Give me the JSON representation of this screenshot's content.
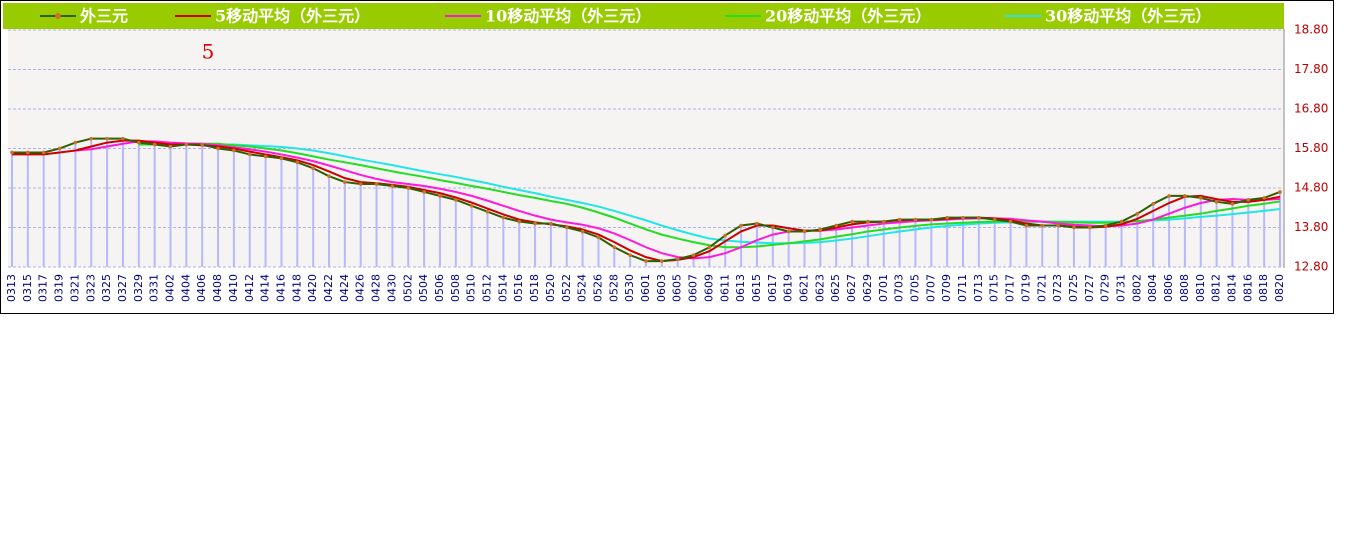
{
  "chart_data": {
    "type": "line",
    "annotation": "5",
    "categories": [
      "0313",
      "0315",
      "0317",
      "0319",
      "0321",
      "0323",
      "0325",
      "0327",
      "0329",
      "0331",
      "0402",
      "0404",
      "0406",
      "0408",
      "0410",
      "0412",
      "0414",
      "0416",
      "0418",
      "0420",
      "0422",
      "0424",
      "0426",
      "0428",
      "0430",
      "0502",
      "0504",
      "0506",
      "0508",
      "0510",
      "0512",
      "0514",
      "0516",
      "0518",
      "0520",
      "0522",
      "0524",
      "0526",
      "0528",
      "0530",
      "0601",
      "0603",
      "0605",
      "0607",
      "0609",
      "0611",
      "0613",
      "0615",
      "0617",
      "0619",
      "0621",
      "0623",
      "0625",
      "0627",
      "0629",
      "0701",
      "0703",
      "0705",
      "0707",
      "0709",
      "0711",
      "0713",
      "0715",
      "0717",
      "0719",
      "0721",
      "0723",
      "0725",
      "0727",
      "0729",
      "0731",
      "0802",
      "0804",
      "0806",
      "0808",
      "0810",
      "0812",
      "0814",
      "0816",
      "0818",
      "0820"
    ],
    "series": [
      {
        "name": "外三元",
        "color": "#2f5f00",
        "marker_color": "#d07020",
        "bar_color": "#b8b8ff",
        "values": [
          15.7,
          15.7,
          15.7,
          15.8,
          15.95,
          16.05,
          16.05,
          16.05,
          15.95,
          15.9,
          15.85,
          15.9,
          15.9,
          15.8,
          15.75,
          15.65,
          15.6,
          15.55,
          15.45,
          15.3,
          15.1,
          14.95,
          14.9,
          14.9,
          14.85,
          14.8,
          14.7,
          14.6,
          14.5,
          14.35,
          14.2,
          14.05,
          13.95,
          13.9,
          13.9,
          13.8,
          13.7,
          13.55,
          13.3,
          13.1,
          12.95,
          12.95,
          13.0,
          13.1,
          13.3,
          13.6,
          13.85,
          13.9,
          13.8,
          13.7,
          13.7,
          13.75,
          13.85,
          13.95,
          13.95,
          13.95,
          14.0,
          14.0,
          14.0,
          14.05,
          14.05,
          14.05,
          14.0,
          13.95,
          13.85,
          13.85,
          13.85,
          13.8,
          13.8,
          13.85,
          13.95,
          14.15,
          14.4,
          14.6,
          14.6,
          14.55,
          14.45,
          14.4,
          14.5,
          14.55,
          14.7
        ]
      },
      {
        "name": "5移动平均（外三元）",
        "color": "#cc0000",
        "values": [
          15.65,
          15.65,
          15.65,
          15.7,
          15.75,
          15.85,
          15.95,
          16.0,
          16.0,
          15.95,
          15.9,
          15.9,
          15.88,
          15.85,
          15.8,
          15.72,
          15.65,
          15.58,
          15.5,
          15.38,
          15.22,
          15.05,
          14.95,
          14.92,
          14.88,
          14.83,
          14.75,
          14.67,
          14.56,
          14.43,
          14.28,
          14.13,
          14.0,
          13.93,
          13.88,
          13.83,
          13.75,
          13.62,
          13.43,
          13.22,
          13.05,
          12.95,
          12.98,
          13.05,
          13.2,
          13.45,
          13.7,
          13.85,
          13.85,
          13.78,
          13.72,
          13.72,
          13.8,
          13.88,
          13.93,
          13.95,
          13.98,
          14.0,
          14.0,
          14.02,
          14.05,
          14.05,
          14.03,
          13.98,
          13.9,
          13.85,
          13.85,
          13.82,
          13.8,
          13.82,
          13.88,
          14.02,
          14.22,
          14.42,
          14.58,
          14.6,
          14.52,
          14.45,
          14.45,
          14.5,
          14.58
        ]
      },
      {
        "name": "10移动平均（外三元）",
        "color": "#ff1ad9",
        "values": [
          null,
          null,
          null,
          null,
          15.75,
          15.78,
          15.85,
          15.92,
          15.98,
          15.98,
          15.95,
          15.93,
          15.92,
          15.88,
          15.83,
          15.78,
          15.72,
          15.65,
          15.57,
          15.48,
          15.37,
          15.25,
          15.13,
          15.03,
          14.95,
          14.9,
          14.85,
          14.78,
          14.7,
          14.6,
          14.48,
          14.35,
          14.22,
          14.1,
          14.0,
          13.93,
          13.87,
          13.78,
          13.65,
          13.48,
          13.3,
          13.15,
          13.05,
          13.02,
          13.05,
          13.15,
          13.3,
          13.48,
          13.62,
          13.7,
          13.72,
          13.72,
          13.75,
          13.8,
          13.85,
          13.9,
          13.93,
          13.96,
          13.98,
          14.0,
          14.02,
          14.03,
          14.03,
          14.02,
          13.98,
          13.95,
          13.9,
          13.87,
          13.85,
          13.83,
          13.85,
          13.9,
          14.0,
          14.15,
          14.3,
          14.42,
          14.5,
          14.52,
          14.5,
          14.5,
          14.52
        ]
      },
      {
        "name": "20移动平均（外三元）",
        "color": "#22dd22",
        "values": [
          null,
          null,
          null,
          null,
          null,
          null,
          null,
          null,
          15.9,
          15.9,
          15.9,
          15.9,
          15.92,
          15.92,
          15.88,
          15.85,
          15.8,
          15.75,
          15.68,
          15.6,
          15.52,
          15.45,
          15.38,
          15.3,
          15.22,
          15.15,
          15.08,
          15.0,
          14.93,
          14.85,
          14.78,
          14.7,
          14.62,
          14.55,
          14.47,
          14.4,
          14.3,
          14.18,
          14.05,
          13.9,
          13.75,
          13.62,
          13.52,
          13.43,
          13.35,
          13.3,
          13.3,
          13.32,
          13.36,
          13.4,
          13.45,
          13.5,
          13.57,
          13.63,
          13.7,
          13.75,
          13.8,
          13.84,
          13.88,
          13.9,
          13.92,
          13.94,
          13.95,
          13.96,
          13.96,
          13.95,
          13.94,
          13.93,
          13.92,
          13.92,
          13.93,
          13.96,
          14.0,
          14.05,
          14.1,
          14.15,
          14.22,
          14.28,
          14.35,
          14.4,
          14.46
        ]
      },
      {
        "name": "30移动平均（外三元）",
        "color": "#22e6e6",
        "values": [
          null,
          null,
          null,
          null,
          null,
          null,
          null,
          null,
          null,
          null,
          null,
          15.9,
          15.9,
          15.9,
          15.9,
          15.88,
          15.86,
          15.84,
          15.8,
          15.75,
          15.68,
          15.6,
          15.52,
          15.45,
          15.38,
          15.3,
          15.22,
          15.15,
          15.08,
          15.0,
          14.92,
          14.83,
          14.75,
          14.67,
          14.58,
          14.5,
          14.42,
          14.33,
          14.22,
          14.1,
          13.98,
          13.85,
          13.73,
          13.62,
          13.52,
          13.47,
          13.44,
          13.42,
          13.4,
          13.4,
          13.41,
          13.43,
          13.47,
          13.52,
          13.58,
          13.64,
          13.7,
          13.75,
          13.8,
          13.84,
          13.87,
          13.9,
          13.92,
          13.93,
          13.94,
          13.95,
          13.95,
          13.95,
          13.95,
          13.95,
          13.95,
          13.96,
          13.98,
          14.0,
          14.03,
          14.07,
          14.1,
          14.14,
          14.18,
          14.22,
          14.27
        ]
      }
    ],
    "ylim": [
      12.8,
      18.8
    ],
    "yticks": [
      {
        "value": 12.8,
        "label": "12.80"
      },
      {
        "value": 13.8,
        "label": "13.80"
      },
      {
        "value": 14.8,
        "label": "14.80"
      },
      {
        "value": 15.8,
        "label": "15.80"
      },
      {
        "value": 16.8,
        "label": "16.80"
      },
      {
        "value": 17.8,
        "label": "17.80"
      },
      {
        "value": 18.8,
        "label": "18.80"
      }
    ],
    "grid": true,
    "legend": "top"
  }
}
